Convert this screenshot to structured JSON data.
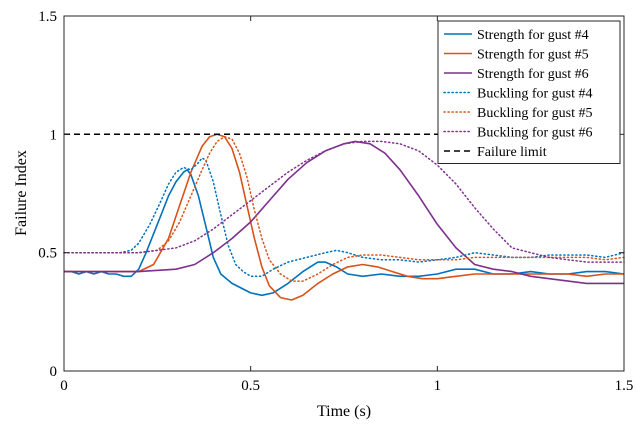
{
  "chart_data": {
    "type": "line",
    "title": "",
    "xlabel": "Time (s)",
    "ylabel": "Failure Index",
    "xlim": [
      0,
      1.5
    ],
    "ylim": [
      0,
      1.5
    ],
    "xticks": [
      0,
      0.5,
      1,
      1.5
    ],
    "xtick_labels": [
      "0",
      "0.5",
      "1",
      "1.5"
    ],
    "yticks": [
      0,
      0.5,
      1,
      1.5
    ],
    "ytick_labels": [
      "0",
      "0.5",
      "1",
      "1.5"
    ],
    "grid": false,
    "legend_position": "top-right",
    "series": [
      {
        "name": "Strength for gust #4",
        "color": "#0072BD",
        "style": "solid",
        "points": [
          [
            0,
            0.42
          ],
          [
            0.02,
            0.42
          ],
          [
            0.04,
            0.41
          ],
          [
            0.06,
            0.42
          ],
          [
            0.08,
            0.41
          ],
          [
            0.1,
            0.42
          ],
          [
            0.12,
            0.41
          ],
          [
            0.14,
            0.41
          ],
          [
            0.16,
            0.4
          ],
          [
            0.18,
            0.4
          ],
          [
            0.2,
            0.43
          ],
          [
            0.22,
            0.5
          ],
          [
            0.24,
            0.58
          ],
          [
            0.26,
            0.66
          ],
          [
            0.28,
            0.74
          ],
          [
            0.3,
            0.8
          ],
          [
            0.32,
            0.84
          ],
          [
            0.33,
            0.85
          ],
          [
            0.34,
            0.83
          ],
          [
            0.36,
            0.74
          ],
          [
            0.38,
            0.61
          ],
          [
            0.4,
            0.48
          ],
          [
            0.42,
            0.41
          ],
          [
            0.45,
            0.37
          ],
          [
            0.5,
            0.33
          ],
          [
            0.53,
            0.32
          ],
          [
            0.56,
            0.33
          ],
          [
            0.6,
            0.37
          ],
          [
            0.64,
            0.42
          ],
          [
            0.68,
            0.46
          ],
          [
            0.7,
            0.46
          ],
          [
            0.73,
            0.44
          ],
          [
            0.76,
            0.41
          ],
          [
            0.8,
            0.4
          ],
          [
            0.85,
            0.41
          ],
          [
            0.9,
            0.4
          ],
          [
            0.95,
            0.4
          ],
          [
            1.0,
            0.41
          ],
          [
            1.05,
            0.43
          ],
          [
            1.1,
            0.43
          ],
          [
            1.15,
            0.41
          ],
          [
            1.2,
            0.41
          ],
          [
            1.25,
            0.42
          ],
          [
            1.3,
            0.41
          ],
          [
            1.35,
            0.41
          ],
          [
            1.4,
            0.42
          ],
          [
            1.45,
            0.42
          ],
          [
            1.5,
            0.41
          ]
        ]
      },
      {
        "name": "Strength for gust #5",
        "color": "#D95319",
        "style": "solid",
        "points": [
          [
            0,
            0.42
          ],
          [
            0.05,
            0.42
          ],
          [
            0.1,
            0.42
          ],
          [
            0.15,
            0.42
          ],
          [
            0.2,
            0.42
          ],
          [
            0.24,
            0.45
          ],
          [
            0.28,
            0.56
          ],
          [
            0.31,
            0.7
          ],
          [
            0.34,
            0.84
          ],
          [
            0.37,
            0.95
          ],
          [
            0.39,
            0.99
          ],
          [
            0.41,
            1.0
          ],
          [
            0.43,
            0.99
          ],
          [
            0.45,
            0.94
          ],
          [
            0.47,
            0.84
          ],
          [
            0.49,
            0.7
          ],
          [
            0.51,
            0.56
          ],
          [
            0.53,
            0.44
          ],
          [
            0.55,
            0.36
          ],
          [
            0.58,
            0.31
          ],
          [
            0.61,
            0.3
          ],
          [
            0.64,
            0.32
          ],
          [
            0.68,
            0.37
          ],
          [
            0.72,
            0.41
          ],
          [
            0.76,
            0.44
          ],
          [
            0.8,
            0.45
          ],
          [
            0.84,
            0.44
          ],
          [
            0.88,
            0.42
          ],
          [
            0.92,
            0.4
          ],
          [
            0.96,
            0.39
          ],
          [
            1.0,
            0.39
          ],
          [
            1.05,
            0.4
          ],
          [
            1.1,
            0.41
          ],
          [
            1.15,
            0.41
          ],
          [
            1.2,
            0.41
          ],
          [
            1.25,
            0.41
          ],
          [
            1.3,
            0.41
          ],
          [
            1.35,
            0.41
          ],
          [
            1.4,
            0.4
          ],
          [
            1.45,
            0.41
          ],
          [
            1.5,
            0.41
          ]
        ]
      },
      {
        "name": "Strength for gust #6",
        "color": "#7E2F8E",
        "style": "solid",
        "points": [
          [
            0,
            0.42
          ],
          [
            0.1,
            0.42
          ],
          [
            0.2,
            0.42
          ],
          [
            0.3,
            0.43
          ],
          [
            0.35,
            0.45
          ],
          [
            0.4,
            0.5
          ],
          [
            0.45,
            0.56
          ],
          [
            0.5,
            0.63
          ],
          [
            0.55,
            0.72
          ],
          [
            0.6,
            0.81
          ],
          [
            0.65,
            0.88
          ],
          [
            0.7,
            0.93
          ],
          [
            0.75,
            0.96
          ],
          [
            0.78,
            0.97
          ],
          [
            0.82,
            0.96
          ],
          [
            0.86,
            0.92
          ],
          [
            0.9,
            0.85
          ],
          [
            0.95,
            0.74
          ],
          [
            1.0,
            0.62
          ],
          [
            1.05,
            0.52
          ],
          [
            1.1,
            0.45
          ],
          [
            1.15,
            0.43
          ],
          [
            1.2,
            0.42
          ],
          [
            1.25,
            0.4
          ],
          [
            1.3,
            0.39
          ],
          [
            1.35,
            0.38
          ],
          [
            1.4,
            0.37
          ],
          [
            1.45,
            0.37
          ],
          [
            1.5,
            0.37
          ]
        ]
      },
      {
        "name": "Buckling for gust #4",
        "color": "#0072BD",
        "style": "dotted",
        "points": [
          [
            0,
            0.5
          ],
          [
            0.05,
            0.5
          ],
          [
            0.1,
            0.5
          ],
          [
            0.15,
            0.5
          ],
          [
            0.18,
            0.51
          ],
          [
            0.2,
            0.54
          ],
          [
            0.23,
            0.62
          ],
          [
            0.26,
            0.72
          ],
          [
            0.28,
            0.79
          ],
          [
            0.3,
            0.84
          ],
          [
            0.32,
            0.86
          ],
          [
            0.34,
            0.85
          ],
          [
            0.36,
            0.88
          ],
          [
            0.37,
            0.9
          ],
          [
            0.38,
            0.89
          ],
          [
            0.4,
            0.8
          ],
          [
            0.42,
            0.66
          ],
          [
            0.44,
            0.53
          ],
          [
            0.46,
            0.45
          ],
          [
            0.48,
            0.42
          ],
          [
            0.5,
            0.4
          ],
          [
            0.53,
            0.4
          ],
          [
            0.56,
            0.43
          ],
          [
            0.6,
            0.46
          ],
          [
            0.65,
            0.48
          ],
          [
            0.7,
            0.5
          ],
          [
            0.73,
            0.51
          ],
          [
            0.76,
            0.5
          ],
          [
            0.8,
            0.48
          ],
          [
            0.85,
            0.47
          ],
          [
            0.9,
            0.47
          ],
          [
            0.95,
            0.46
          ],
          [
            1.0,
            0.47
          ],
          [
            1.05,
            0.48
          ],
          [
            1.1,
            0.5
          ],
          [
            1.15,
            0.49
          ],
          [
            1.2,
            0.48
          ],
          [
            1.25,
            0.48
          ],
          [
            1.3,
            0.49
          ],
          [
            1.35,
            0.49
          ],
          [
            1.4,
            0.49
          ],
          [
            1.45,
            0.48
          ],
          [
            1.5,
            0.5
          ]
        ]
      },
      {
        "name": "Buckling for gust #5",
        "color": "#D95319",
        "style": "dotted",
        "points": [
          [
            0,
            0.5
          ],
          [
            0.1,
            0.5
          ],
          [
            0.2,
            0.5
          ],
          [
            0.25,
            0.51
          ],
          [
            0.28,
            0.55
          ],
          [
            0.31,
            0.63
          ],
          [
            0.34,
            0.74
          ],
          [
            0.37,
            0.85
          ],
          [
            0.39,
            0.92
          ],
          [
            0.41,
            0.97
          ],
          [
            0.43,
            0.99
          ],
          [
            0.45,
            0.98
          ],
          [
            0.47,
            0.92
          ],
          [
            0.49,
            0.82
          ],
          [
            0.51,
            0.68
          ],
          [
            0.53,
            0.56
          ],
          [
            0.55,
            0.47
          ],
          [
            0.58,
            0.41
          ],
          [
            0.61,
            0.38
          ],
          [
            0.64,
            0.38
          ],
          [
            0.68,
            0.41
          ],
          [
            0.72,
            0.45
          ],
          [
            0.76,
            0.48
          ],
          [
            0.8,
            0.49
          ],
          [
            0.85,
            0.49
          ],
          [
            0.9,
            0.48
          ],
          [
            0.95,
            0.47
          ],
          [
            1.0,
            0.47
          ],
          [
            1.05,
            0.47
          ],
          [
            1.1,
            0.48
          ],
          [
            1.15,
            0.48
          ],
          [
            1.2,
            0.48
          ],
          [
            1.25,
            0.48
          ],
          [
            1.3,
            0.48
          ],
          [
            1.35,
            0.48
          ],
          [
            1.4,
            0.48
          ],
          [
            1.45,
            0.47
          ],
          [
            1.5,
            0.48
          ]
        ]
      },
      {
        "name": "Buckling for gust #6",
        "color": "#7E2F8E",
        "style": "dotted",
        "points": [
          [
            0,
            0.5
          ],
          [
            0.1,
            0.5
          ],
          [
            0.2,
            0.5
          ],
          [
            0.3,
            0.52
          ],
          [
            0.35,
            0.55
          ],
          [
            0.4,
            0.6
          ],
          [
            0.45,
            0.66
          ],
          [
            0.5,
            0.72
          ],
          [
            0.55,
            0.78
          ],
          [
            0.6,
            0.84
          ],
          [
            0.65,
            0.89
          ],
          [
            0.7,
            0.93
          ],
          [
            0.75,
            0.96
          ],
          [
            0.8,
            0.97
          ],
          [
            0.85,
            0.97
          ],
          [
            0.9,
            0.96
          ],
          [
            0.95,
            0.93
          ],
          [
            1.0,
            0.87
          ],
          [
            1.05,
            0.79
          ],
          [
            1.1,
            0.69
          ],
          [
            1.15,
            0.6
          ],
          [
            1.2,
            0.52
          ],
          [
            1.25,
            0.5
          ],
          [
            1.3,
            0.48
          ],
          [
            1.35,
            0.47
          ],
          [
            1.4,
            0.46
          ],
          [
            1.45,
            0.46
          ],
          [
            1.5,
            0.46
          ]
        ]
      },
      {
        "name": "Failure limit",
        "color": "#000000",
        "style": "dashed",
        "points": [
          [
            0,
            1.0
          ],
          [
            1.5,
            1.0
          ]
        ]
      }
    ]
  }
}
